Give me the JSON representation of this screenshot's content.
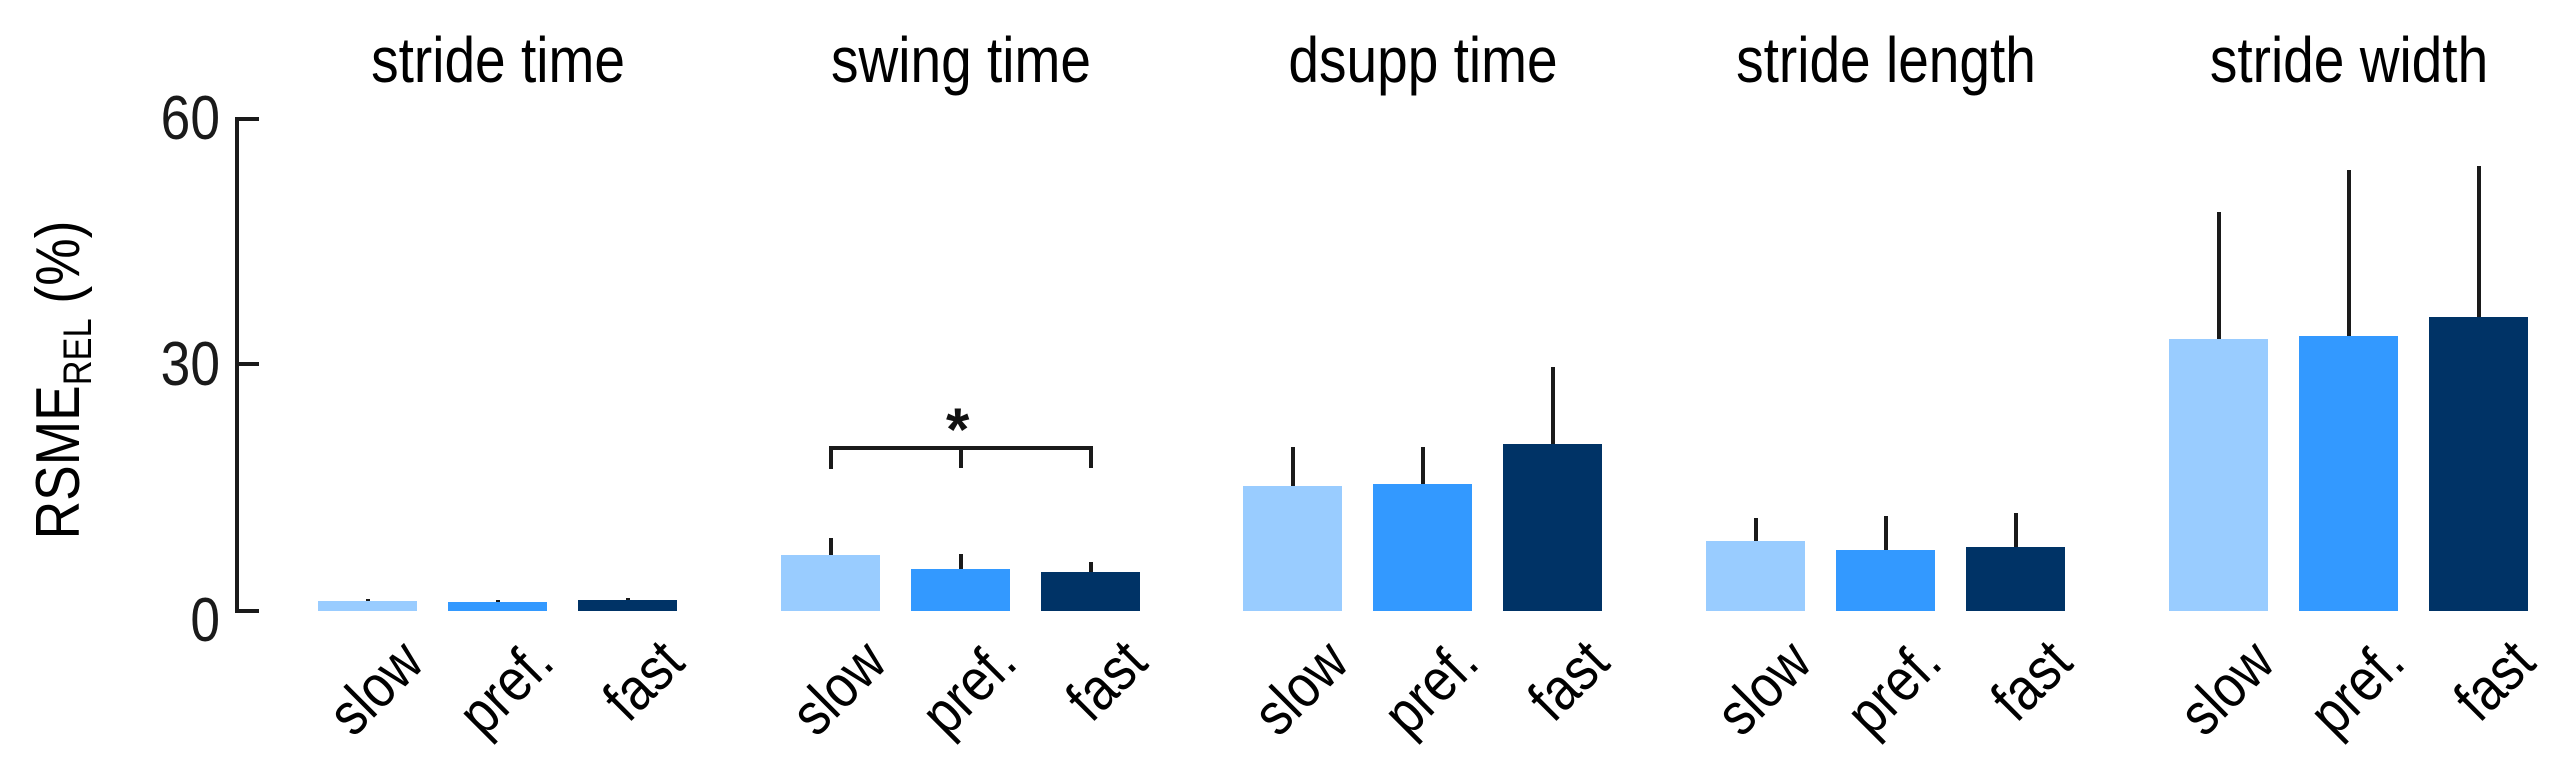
{
  "chart_data": {
    "type": "bar",
    "ylabel": "RSME",
    "ylabel_subscript": "REL",
    "ylabel_unit": "(%)",
    "ylim": [
      0,
      60
    ],
    "yticks": [
      0,
      30,
      60
    ],
    "grid": false,
    "legend": null,
    "categories": [
      "slow",
      "pref.",
      "fast"
    ],
    "colors": {
      "slow": "#99ccff",
      "pref.": "#3399ff",
      "fast": "#003366"
    },
    "panels": [
      {
        "title": "stride time",
        "values": [
          1.2,
          1.1,
          1.3
        ],
        "errors": [
          0.3,
          0.3,
          0.3
        ],
        "significance": null
      },
      {
        "title": "swing time",
        "values": [
          6.8,
          5.1,
          4.8
        ],
        "errors": [
          2.1,
          1.9,
          1.2
        ],
        "significance": {
          "label": "*",
          "groups": [
            "slow",
            "pref.",
            "fast"
          ]
        }
      },
      {
        "title": "dsupp time",
        "values": [
          15.2,
          15.5,
          20.4
        ],
        "errors": [
          4.8,
          4.5,
          9.4
        ],
        "significance": null
      },
      {
        "title": "stride length",
        "values": [
          8.5,
          7.4,
          7.8
        ],
        "errors": [
          2.8,
          4.2,
          4.1
        ],
        "significance": null
      },
      {
        "title": "stride width",
        "values": [
          33.2,
          33.5,
          35.9
        ],
        "errors": [
          15.5,
          20.3,
          18.4
        ],
        "significance": null
      }
    ]
  },
  "axis": {
    "ylabel_main": "RSME",
    "ylabel_sub": "REL",
    "ylabel_unit": " (%)",
    "tick_labels": [
      "60",
      "30",
      "0"
    ]
  },
  "titles": [
    "stride time",
    "swing time",
    "dsupp time",
    "stride length",
    "stride width"
  ],
  "xlabels": [
    "slow",
    "pref.",
    "fast"
  ],
  "significance_label": "*"
}
